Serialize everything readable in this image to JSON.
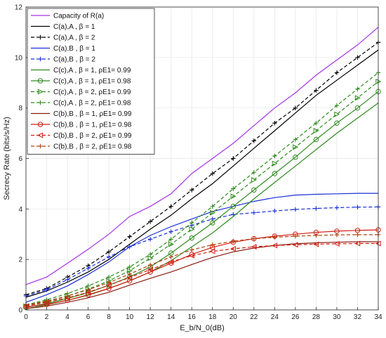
{
  "chart_data": {
    "type": "line",
    "title": "",
    "xlabel": "E_b/N_0(dB)",
    "ylabel": "Secrecy Rate (bits/s/Hz)",
    "xlim": [
      0,
      34
    ],
    "ylim": [
      0,
      12
    ],
    "xticks": [
      0,
      2,
      4,
      6,
      8,
      10,
      12,
      14,
      16,
      18,
      20,
      22,
      24,
      26,
      28,
      30,
      32,
      34
    ],
    "yticks": [
      0,
      2,
      4,
      6,
      8,
      10,
      12
    ],
    "grid": true,
    "legend_position": "top-left",
    "x": [
      0,
      2,
      4,
      6,
      8,
      10,
      12,
      14,
      16,
      18,
      20,
      22,
      24,
      26,
      28,
      30,
      32,
      34
    ],
    "series": [
      {
        "name": "Capacity of R(a)",
        "color": "#a633e6",
        "dash": "solid",
        "marker": "none",
        "values": [
          1.0,
          1.3,
          1.85,
          2.4,
          3.0,
          3.7,
          4.1,
          4.6,
          5.4,
          6.0,
          6.6,
          7.3,
          8.0,
          8.6,
          9.3,
          9.9,
          10.5,
          11.2
        ]
      },
      {
        "name": "C(a),A , β = 1",
        "color": "#000000",
        "dash": "solid",
        "marker": "none",
        "values": [
          0.5,
          0.75,
          1.1,
          1.5,
          2.0,
          2.6,
          3.2,
          3.75,
          4.4,
          5.0,
          5.7,
          6.4,
          7.1,
          7.8,
          8.5,
          9.1,
          9.7,
          10.3
        ]
      },
      {
        "name": "C(a),A , β = 2",
        "color": "#000000",
        "dash": "dashed",
        "marker": "plus",
        "values": [
          0.6,
          0.85,
          1.3,
          1.75,
          2.3,
          2.9,
          3.5,
          4.1,
          4.75,
          5.4,
          6.0,
          6.7,
          7.4,
          8.0,
          8.7,
          9.4,
          10.0,
          10.6
        ]
      },
      {
        "name": "C(a),B , β = 1",
        "color": "#1a2fd6",
        "dash": "solid",
        "marker": "none",
        "values": [
          0.3,
          0.6,
          0.95,
          1.4,
          1.9,
          2.5,
          2.95,
          3.3,
          3.6,
          3.9,
          4.1,
          4.3,
          4.45,
          4.55,
          4.58,
          4.6,
          4.62,
          4.62
        ]
      },
      {
        "name": "C(a),B , β = 2",
        "color": "#1a2fd6",
        "dash": "dashed",
        "marker": "plus",
        "values": [
          0.55,
          0.8,
          1.2,
          1.65,
          2.1,
          2.5,
          2.8,
          3.1,
          3.35,
          3.6,
          3.78,
          3.85,
          3.92,
          3.98,
          4.02,
          4.05,
          4.07,
          4.08
        ]
      },
      {
        "name": "C(c),A , β = 1, ρE1= 0.99",
        "color": "#2e8b1e",
        "dash": "solid",
        "marker": "none",
        "values": [
          0.05,
          0.2,
          0.38,
          0.58,
          0.85,
          1.15,
          1.5,
          1.95,
          2.5,
          3.05,
          3.7,
          4.4,
          5.05,
          5.7,
          6.35,
          7.0,
          7.6,
          8.2
        ]
      },
      {
        "name": "C(c),A , β = 1, ρE1= 0.98",
        "color": "#2e8b1e",
        "dash": "solid",
        "marker": "circle",
        "values": [
          0.1,
          0.25,
          0.45,
          0.68,
          0.98,
          1.3,
          1.7,
          2.25,
          2.85,
          3.45,
          4.1,
          4.75,
          5.4,
          6.05,
          6.75,
          7.4,
          8.0,
          8.65
        ]
      },
      {
        "name": "C(c),A , β = 2, ρE1= 0.99",
        "color": "#2e8b1e",
        "dash": "dashed",
        "marker": "triangle-right",
        "values": [
          0.15,
          0.32,
          0.55,
          0.82,
          1.15,
          1.55,
          2.05,
          2.6,
          3.2,
          3.85,
          4.5,
          5.15,
          5.8,
          6.45,
          7.1,
          7.75,
          8.4,
          9.05
        ]
      },
      {
        "name": "C(c),A , β = 2, ρE1= 0.98",
        "color": "#2e8b1e",
        "dash": "dashed",
        "marker": "plus",
        "values": [
          0.2,
          0.4,
          0.65,
          0.95,
          1.3,
          1.7,
          2.2,
          2.8,
          3.45,
          4.1,
          4.8,
          5.45,
          6.1,
          6.75,
          7.4,
          8.1,
          8.75,
          9.4
        ]
      },
      {
        "name": "C(b),B , β = 1, ρE1= 0.99",
        "color": "#8b1a10",
        "dash": "solid",
        "marker": "none",
        "values": [
          0.05,
          0.15,
          0.3,
          0.48,
          0.7,
          0.98,
          1.25,
          1.5,
          1.8,
          2.08,
          2.3,
          2.45,
          2.55,
          2.62,
          2.66,
          2.68,
          2.7,
          2.7
        ]
      },
      {
        "name": "C(b),B , β = 1, ρE1= 0.98",
        "color": "#d11e12",
        "dash": "solid",
        "marker": "circle",
        "values": [
          0.12,
          0.22,
          0.38,
          0.6,
          0.85,
          1.15,
          1.5,
          1.85,
          2.2,
          2.48,
          2.68,
          2.82,
          2.92,
          3.0,
          3.07,
          3.12,
          3.15,
          3.17
        ]
      },
      {
        "name": "C(b),B , β = 2, ρE1= 0.99",
        "color": "#d11e12",
        "dash": "dashed",
        "marker": "triangle-left",
        "values": [
          0.15,
          0.3,
          0.48,
          0.7,
          0.98,
          1.28,
          1.6,
          1.9,
          2.15,
          2.32,
          2.42,
          2.5,
          2.55,
          2.58,
          2.6,
          2.62,
          2.63,
          2.63
        ]
      },
      {
        "name": "C(b),B , β = 2, ρE1= 0.98",
        "color": "#b0420f",
        "dash": "dashed",
        "marker": "plus",
        "values": [
          0.18,
          0.35,
          0.55,
          0.8,
          1.08,
          1.42,
          1.78,
          2.1,
          2.38,
          2.58,
          2.72,
          2.82,
          2.88,
          2.92,
          2.95,
          2.97,
          2.98,
          2.98
        ]
      }
    ]
  }
}
